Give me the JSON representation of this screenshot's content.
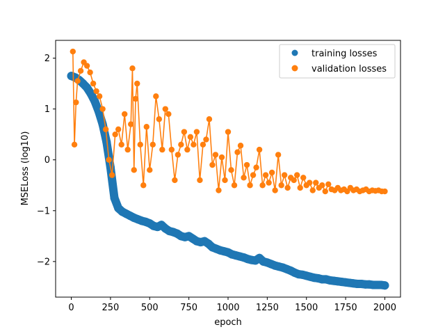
{
  "chart_data": {
    "type": "scatter",
    "title": "",
    "xlabel": "epoch",
    "ylabel": "MSELoss (log10)",
    "xlim": [
      -100,
      2100
    ],
    "ylim": [
      -2.7,
      2.35
    ],
    "xticks": [
      0,
      250,
      500,
      750,
      1000,
      1250,
      1500,
      1750,
      2000
    ],
    "yticks": [
      -2,
      -1,
      0,
      1,
      2
    ],
    "xtick_labels": [
      "0",
      "250",
      "500",
      "750",
      "1000",
      "1250",
      "1500",
      "1750",
      "2000"
    ],
    "ytick_labels": [
      "−2",
      "−1",
      "0",
      "1",
      "2"
    ],
    "grid": false,
    "legend_position": "top-right",
    "series": [
      {
        "name": "training losses",
        "color": "#1f77b4",
        "style": "markers",
        "x": [
          0,
          25,
          50,
          75,
          100,
          125,
          150,
          175,
          200,
          225,
          250,
          275,
          300,
          325,
          350,
          375,
          400,
          425,
          450,
          475,
          500,
          525,
          550,
          575,
          600,
          625,
          650,
          675,
          700,
          725,
          750,
          775,
          800,
          825,
          850,
          875,
          900,
          925,
          950,
          975,
          1000,
          1025,
          1050,
          1075,
          1100,
          1125,
          1150,
          1175,
          1200,
          1225,
          1250,
          1275,
          1300,
          1325,
          1350,
          1375,
          1400,
          1425,
          1450,
          1475,
          1500,
          1525,
          1550,
          1575,
          1600,
          1625,
          1650,
          1675,
          1700,
          1725,
          1750,
          1775,
          1800,
          1825,
          1850,
          1875,
          1900,
          1925,
          1950,
          1975,
          2000
        ],
        "y": [
          1.65,
          1.62,
          1.57,
          1.5,
          1.42,
          1.3,
          1.15,
          0.95,
          0.7,
          0.35,
          -0.15,
          -0.75,
          -0.95,
          -1.02,
          -1.06,
          -1.1,
          -1.14,
          -1.17,
          -1.2,
          -1.22,
          -1.25,
          -1.3,
          -1.32,
          -1.28,
          -1.35,
          -1.4,
          -1.42,
          -1.45,
          -1.5,
          -1.52,
          -1.5,
          -1.55,
          -1.6,
          -1.62,
          -1.6,
          -1.65,
          -1.72,
          -1.75,
          -1.78,
          -1.8,
          -1.82,
          -1.86,
          -1.88,
          -1.9,
          -1.92,
          -1.95,
          -1.97,
          -1.98,
          -1.93,
          -2.0,
          -2.02,
          -2.05,
          -2.08,
          -2.1,
          -2.12,
          -2.15,
          -2.18,
          -2.22,
          -2.25,
          -2.26,
          -2.28,
          -2.3,
          -2.32,
          -2.33,
          -2.35,
          -2.35,
          -2.37,
          -2.38,
          -2.39,
          -2.4,
          -2.41,
          -2.42,
          -2.43,
          -2.44,
          -2.44,
          -2.45,
          -2.45,
          -2.46,
          -2.46,
          -2.46,
          -2.47
        ]
      },
      {
        "name": "validation losses",
        "color": "#ff7f0e",
        "style": "line+markers",
        "x": [
          10,
          20,
          30,
          40,
          60,
          80,
          100,
          120,
          140,
          160,
          180,
          200,
          220,
          240,
          260,
          280,
          300,
          320,
          340,
          360,
          380,
          390,
          400,
          410,
          420,
          440,
          460,
          480,
          500,
          520,
          540,
          560,
          580,
          600,
          620,
          640,
          660,
          680,
          700,
          720,
          740,
          760,
          780,
          800,
          820,
          840,
          860,
          880,
          900,
          920,
          940,
          960,
          980,
          1000,
          1020,
          1040,
          1060,
          1080,
          1100,
          1120,
          1140,
          1160,
          1180,
          1200,
          1220,
          1240,
          1260,
          1280,
          1300,
          1320,
          1340,
          1360,
          1380,
          1400,
          1420,
          1440,
          1460,
          1480,
          1500,
          1520,
          1540,
          1560,
          1580,
          1600,
          1620,
          1640,
          1660,
          1680,
          1700,
          1720,
          1740,
          1760,
          1780,
          1800,
          1820,
          1840,
          1860,
          1880,
          1900,
          1920,
          1940,
          1960,
          1980,
          2000
        ],
        "y": [
          2.13,
          0.3,
          1.13,
          1.55,
          1.75,
          1.92,
          1.85,
          1.72,
          1.5,
          1.35,
          1.25,
          1.0,
          0.6,
          0.0,
          -0.3,
          0.5,
          0.6,
          0.3,
          0.9,
          0.2,
          0.7,
          1.8,
          -0.2,
          1.2,
          1.5,
          0.3,
          -0.5,
          0.65,
          -0.2,
          0.3,
          1.25,
          0.8,
          0.2,
          1.0,
          0.9,
          0.2,
          -0.4,
          0.1,
          0.3,
          0.55,
          0.2,
          0.45,
          0.3,
          0.55,
          -0.4,
          0.3,
          0.4,
          0.8,
          -0.1,
          0.1,
          -0.6,
          0.05,
          -0.4,
          0.55,
          -0.2,
          -0.5,
          0.15,
          0.28,
          -0.35,
          -0.1,
          -0.5,
          -0.3,
          -0.15,
          0.2,
          -0.5,
          -0.3,
          -0.45,
          -0.25,
          -0.6,
          0.1,
          -0.5,
          -0.3,
          -0.55,
          -0.35,
          -0.4,
          -0.3,
          -0.55,
          -0.35,
          -0.5,
          -0.45,
          -0.6,
          -0.45,
          -0.55,
          -0.5,
          -0.62,
          -0.48,
          -0.58,
          -0.6,
          -0.55,
          -0.6,
          -0.58,
          -0.62,
          -0.55,
          -0.6,
          -0.58,
          -0.62,
          -0.6,
          -0.58,
          -0.62,
          -0.6,
          -0.61,
          -0.6,
          -0.62,
          -0.62
        ]
      }
    ]
  }
}
